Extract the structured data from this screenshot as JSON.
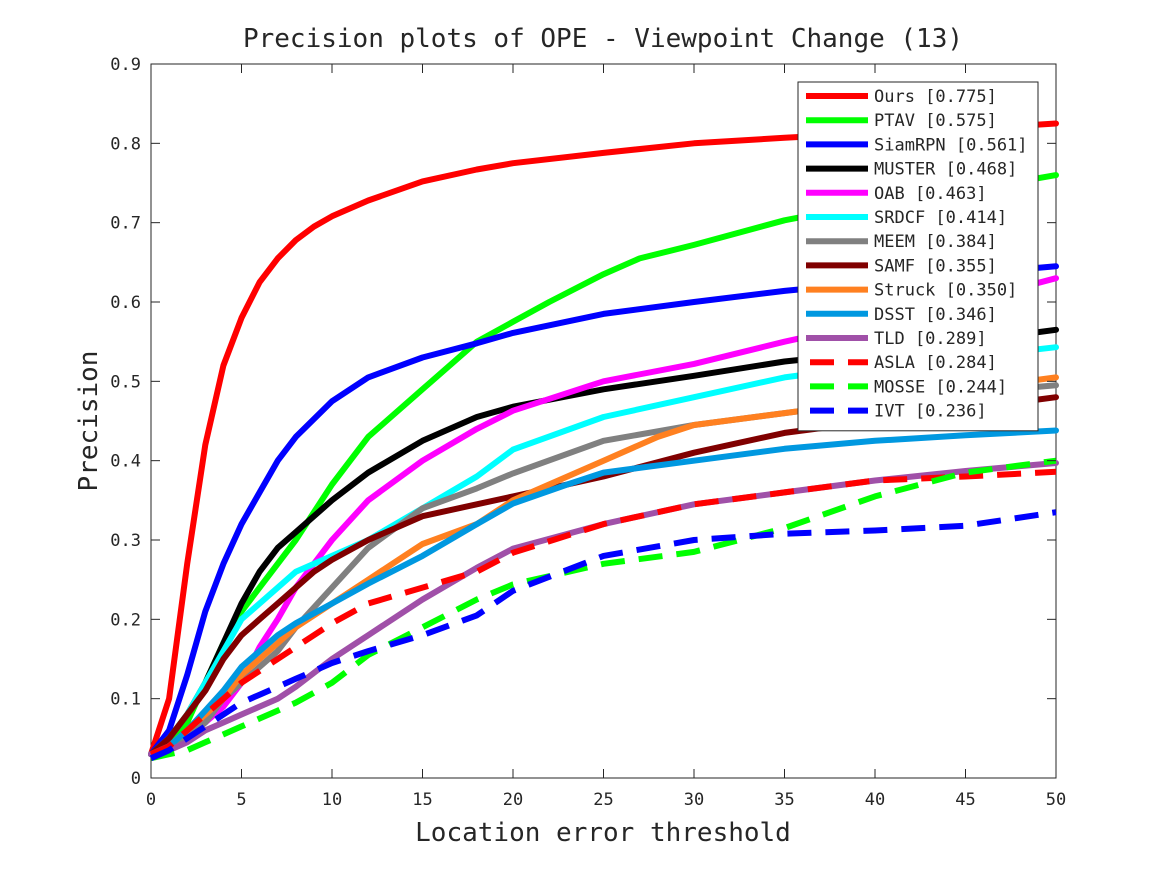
{
  "chart_data": {
    "type": "line",
    "title": "Precision plots of OPE - Viewpoint Change (13)",
    "xlabel": "Location error threshold",
    "ylabel": "Precision",
    "xlim": [
      0,
      50
    ],
    "ylim": [
      0,
      0.9
    ],
    "xticks": [
      "0",
      "5",
      "10",
      "15",
      "20",
      "25",
      "30",
      "35",
      "40",
      "45",
      "50"
    ],
    "yticks": [
      "0",
      "0.1",
      "0.2",
      "0.3",
      "0.4",
      "0.5",
      "0.6",
      "0.7",
      "0.8",
      "0.9"
    ],
    "grid": false,
    "legend_position": "top-right",
    "series": [
      {
        "name": "Ours [0.775]",
        "color": "#ff0000",
        "dash": false,
        "x": [
          0,
          1,
          2,
          3,
          4,
          5,
          6,
          7,
          8,
          9,
          10,
          12,
          15,
          18,
          20,
          25,
          30,
          35,
          40,
          45,
          50
        ],
        "y": [
          0.03,
          0.1,
          0.27,
          0.42,
          0.52,
          0.58,
          0.625,
          0.655,
          0.678,
          0.695,
          0.708,
          0.728,
          0.752,
          0.767,
          0.775,
          0.788,
          0.8,
          0.807,
          0.813,
          0.818,
          0.825
        ]
      },
      {
        "name": "PTAV [0.575]",
        "color": "#00ff00",
        "dash": false,
        "x": [
          0,
          1,
          2,
          3,
          4,
          5,
          6,
          8,
          10,
          12,
          15,
          18,
          20,
          22,
          25,
          27,
          30,
          35,
          40,
          45,
          50
        ],
        "y": [
          0.03,
          0.04,
          0.07,
          0.12,
          0.17,
          0.21,
          0.24,
          0.3,
          0.37,
          0.43,
          0.49,
          0.55,
          0.575,
          0.6,
          0.635,
          0.655,
          0.672,
          0.703,
          0.725,
          0.74,
          0.76
        ]
      },
      {
        "name": "SiamRPN [0.561]",
        "color": "#0000ff",
        "dash": false,
        "x": [
          0,
          1,
          2,
          3,
          4,
          5,
          6,
          7,
          8,
          10,
          12,
          15,
          18,
          20,
          25,
          30,
          35,
          40,
          45,
          50
        ],
        "y": [
          0.03,
          0.06,
          0.13,
          0.21,
          0.27,
          0.32,
          0.36,
          0.4,
          0.43,
          0.475,
          0.505,
          0.53,
          0.548,
          0.561,
          0.585,
          0.6,
          0.614,
          0.625,
          0.635,
          0.645
        ]
      },
      {
        "name": "MUSTER [0.468]",
        "color": "#000000",
        "dash": false,
        "x": [
          0,
          1,
          2,
          3,
          4,
          5,
          6,
          7,
          8,
          10,
          12,
          15,
          18,
          20,
          25,
          30,
          35,
          40,
          45,
          50
        ],
        "y": [
          0.03,
          0.05,
          0.08,
          0.12,
          0.17,
          0.22,
          0.26,
          0.29,
          0.31,
          0.35,
          0.385,
          0.425,
          0.455,
          0.468,
          0.49,
          0.507,
          0.525,
          0.537,
          0.55,
          0.565
        ]
      },
      {
        "name": "OAB [0.463]",
        "color": "#ff00ff",
        "dash": false,
        "x": [
          0,
          1,
          2,
          3,
          4,
          5,
          6,
          7,
          8,
          10,
          12,
          15,
          18,
          20,
          25,
          30,
          35,
          40,
          45,
          50
        ],
        "y": [
          0.03,
          0.04,
          0.05,
          0.07,
          0.09,
          0.12,
          0.165,
          0.2,
          0.24,
          0.3,
          0.35,
          0.4,
          0.44,
          0.463,
          0.5,
          0.522,
          0.55,
          0.575,
          0.6,
          0.63
        ]
      },
      {
        "name": "SRDCF [0.414]",
        "color": "#00ffff",
        "dash": false,
        "x": [
          0,
          1,
          2,
          3,
          4,
          5,
          6,
          7,
          8,
          10,
          12,
          15,
          18,
          20,
          25,
          30,
          35,
          40,
          45,
          50
        ],
        "y": [
          0.03,
          0.05,
          0.08,
          0.12,
          0.16,
          0.2,
          0.22,
          0.24,
          0.26,
          0.28,
          0.3,
          0.34,
          0.38,
          0.414,
          0.455,
          0.48,
          0.505,
          0.52,
          0.53,
          0.543
        ]
      },
      {
        "name": "MEEM [0.384]",
        "color": "#808080",
        "dash": false,
        "x": [
          0,
          1,
          2,
          3,
          4,
          5,
          6,
          7,
          8,
          10,
          12,
          15,
          18,
          20,
          25,
          30,
          35,
          40,
          45,
          50
        ],
        "y": [
          0.03,
          0.035,
          0.05,
          0.07,
          0.1,
          0.12,
          0.14,
          0.16,
          0.19,
          0.24,
          0.29,
          0.34,
          0.365,
          0.384,
          0.425,
          0.445,
          0.46,
          0.475,
          0.485,
          0.495
        ]
      },
      {
        "name": "SAMF [0.355]",
        "color": "#800000",
        "dash": false,
        "x": [
          0,
          1,
          2,
          3,
          4,
          5,
          6,
          7,
          8,
          9,
          10,
          12,
          15,
          18,
          20,
          25,
          30,
          35,
          40,
          45,
          50
        ],
        "y": [
          0.03,
          0.05,
          0.08,
          0.11,
          0.15,
          0.18,
          0.2,
          0.22,
          0.24,
          0.26,
          0.275,
          0.3,
          0.33,
          0.345,
          0.355,
          0.38,
          0.41,
          0.435,
          0.45,
          0.465,
          0.48
        ]
      },
      {
        "name": "Struck [0.350]",
        "color": "#ff8020",
        "dash": false,
        "x": [
          0,
          1,
          2,
          3,
          4,
          5,
          6,
          7,
          8,
          10,
          12,
          14,
          15,
          18,
          20,
          25,
          28,
          30,
          35,
          40,
          45,
          50
        ],
        "y": [
          0.03,
          0.04,
          0.06,
          0.08,
          0.1,
          0.13,
          0.15,
          0.17,
          0.19,
          0.22,
          0.25,
          0.28,
          0.295,
          0.32,
          0.35,
          0.4,
          0.43,
          0.445,
          0.46,
          0.475,
          0.49,
          0.505
        ]
      },
      {
        "name": "DSST [0.346]",
        "color": "#0098e0",
        "dash": false,
        "x": [
          0,
          1,
          2,
          3,
          4,
          5,
          6,
          7,
          8,
          10,
          12,
          15,
          18,
          20,
          23,
          25,
          30,
          35,
          40,
          45,
          50
        ],
        "y": [
          0.03,
          0.04,
          0.06,
          0.085,
          0.11,
          0.14,
          0.16,
          0.18,
          0.195,
          0.22,
          0.245,
          0.28,
          0.32,
          0.346,
          0.37,
          0.385,
          0.4,
          0.415,
          0.425,
          0.432,
          0.438
        ]
      },
      {
        "name": "TLD [0.289]",
        "color": "#a050a8",
        "dash": false,
        "x": [
          0,
          1,
          2,
          3,
          4,
          5,
          6,
          7,
          8,
          10,
          12,
          15,
          18,
          20,
          25,
          30,
          35,
          40,
          45,
          50
        ],
        "y": [
          0.03,
          0.035,
          0.045,
          0.06,
          0.07,
          0.08,
          0.09,
          0.1,
          0.115,
          0.15,
          0.18,
          0.225,
          0.265,
          0.289,
          0.32,
          0.345,
          0.36,
          0.375,
          0.387,
          0.397
        ]
      },
      {
        "name": "ASLA [0.284]",
        "color": "#ff0000",
        "dash": true,
        "x": [
          0,
          1,
          2,
          3,
          4,
          5,
          6,
          8,
          10,
          12,
          15,
          18,
          20,
          25,
          30,
          35,
          40,
          45,
          50
        ],
        "y": [
          0.03,
          0.04,
          0.06,
          0.08,
          0.1,
          0.12,
          0.135,
          0.165,
          0.195,
          0.22,
          0.24,
          0.26,
          0.284,
          0.32,
          0.345,
          0.36,
          0.375,
          0.38,
          0.386
        ]
      },
      {
        "name": "MOSSE [0.244]",
        "color": "#00ff00",
        "dash": true,
        "x": [
          0,
          1,
          2,
          3,
          4,
          5,
          6,
          7,
          8,
          10,
          12,
          15,
          18,
          20,
          25,
          30,
          35,
          40,
          45,
          50
        ],
        "y": [
          0.025,
          0.03,
          0.035,
          0.045,
          0.055,
          0.065,
          0.075,
          0.085,
          0.095,
          0.12,
          0.155,
          0.19,
          0.225,
          0.244,
          0.27,
          0.285,
          0.315,
          0.355,
          0.385,
          0.4
        ]
      },
      {
        "name": "IVT [0.236]",
        "color": "#0000ff",
        "dash": true,
        "x": [
          0,
          1,
          2,
          3,
          4,
          5,
          6,
          8,
          10,
          12,
          15,
          18,
          20,
          25,
          30,
          35,
          40,
          45,
          50
        ],
        "y": [
          0.025,
          0.035,
          0.05,
          0.065,
          0.08,
          0.095,
          0.105,
          0.125,
          0.145,
          0.16,
          0.18,
          0.205,
          0.236,
          0.28,
          0.3,
          0.308,
          0.312,
          0.318,
          0.335
        ]
      }
    ]
  }
}
